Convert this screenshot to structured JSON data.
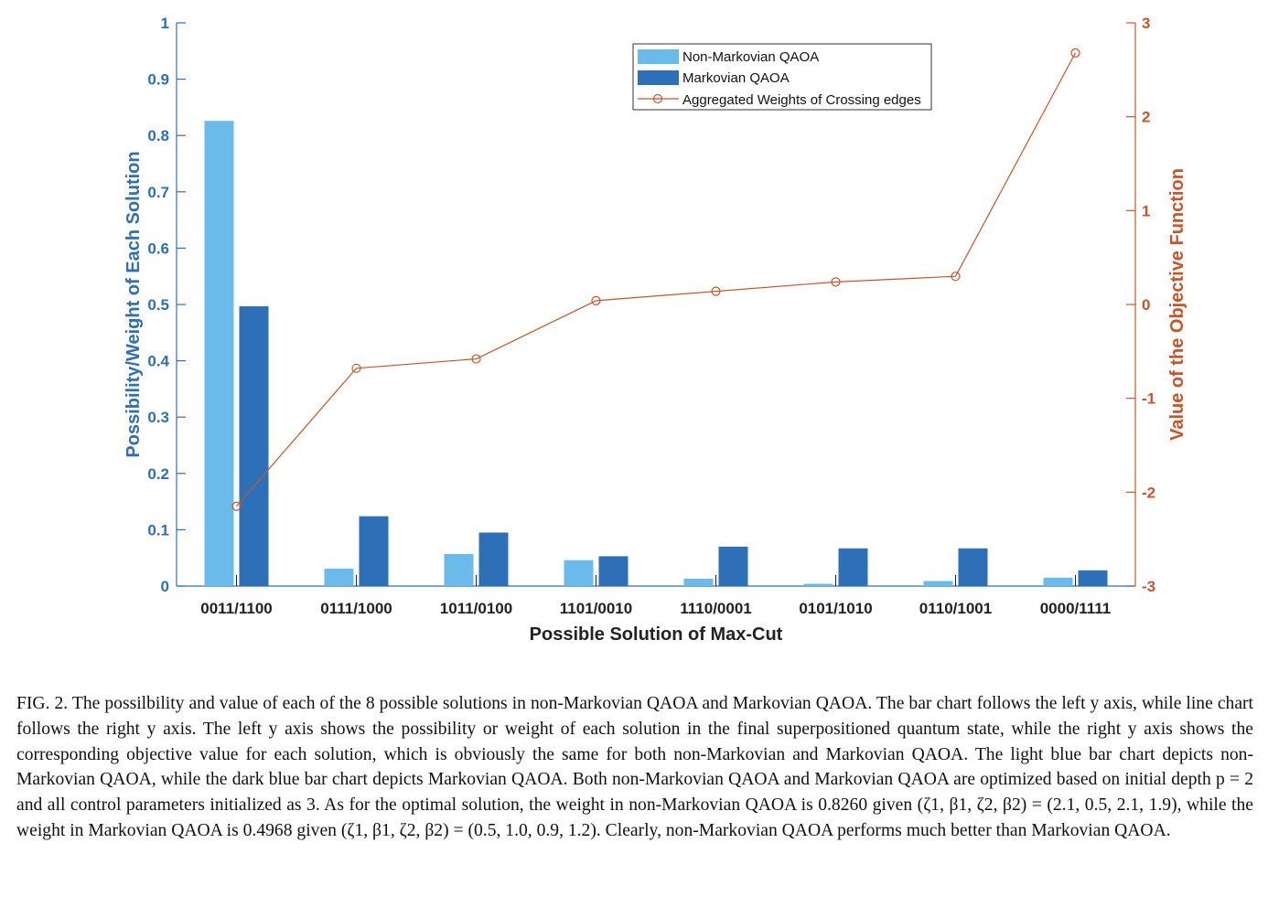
{
  "chart_data": {
    "type": "bar+line",
    "categories": [
      "0011/1100",
      "0111/1000",
      "1011/0100",
      "1101/0010",
      "1110/0001",
      "0101/1010",
      "0110/1001",
      "0000/1111"
    ],
    "series": [
      {
        "name": "Non-Markovian QAOA",
        "type": "bar",
        "axis": "left",
        "color": "#6bbbea",
        "values": [
          0.826,
          0.031,
          0.057,
          0.046,
          0.013,
          0.004,
          0.009,
          0.015
        ]
      },
      {
        "name": "Markovian QAOA",
        "type": "bar",
        "axis": "left",
        "color": "#2e70b8",
        "values": [
          0.4968,
          0.124,
          0.095,
          0.053,
          0.07,
          0.067,
          0.067,
          0.028
        ]
      },
      {
        "name": "Aggregated Weights of Crossing edges",
        "type": "line",
        "axis": "right",
        "color": "#c8552a",
        "values": [
          -2.15,
          -0.68,
          -0.58,
          0.04,
          0.14,
          0.24,
          0.3,
          2.68
        ]
      }
    ],
    "xlabel": "Possible Solution of Max-Cut",
    "ylabel_left": "Possibility/Weight of Each Solution",
    "ylabel_right": "Value of the Objective Function",
    "ylim_left": [
      0,
      1
    ],
    "ylim_right": [
      -3,
      3
    ],
    "yticks_left": [
      "0",
      "0.1",
      "0.2",
      "0.3",
      "0.4",
      "0.5",
      "0.6",
      "0.7",
      "0.8",
      "0.9",
      "1"
    ],
    "yticks_right": [
      "-3",
      "-2",
      "-1",
      "0",
      "1",
      "2",
      "3"
    ],
    "grid": false,
    "legend_position": "top-right",
    "colors": {
      "left_axis": "#2f6fb6",
      "right_axis": "#c8552a"
    }
  },
  "caption": "FIG. 2. The possilbility and value of each of the 8 possible solutions in non-Markovian QAOA and Markovian QAOA. The bar chart follows the left y axis, while line chart follows the right y axis. The left y axis shows the possibility or weight of each solution in the final superpositioned quantum state, while the right y axis shows the corresponding objective value for each solution, which is obviously the same for both non-Markovian and Markovian QAOA. The light blue bar chart depicts non-Markovian QAOA, while the dark blue bar chart depicts Markovian QAOA. Both non-Markovian QAOA and Markovian QAOA are optimized based on initial depth p = 2 and all control parameters initialized as 3. As for the optimal solution, the weight in non-Markovian QAOA is 0.8260 given (ζ1, β1, ζ2, β2) = (2.1, 0.5, 2.1, 1.9), while the weight in Markovian QAOA is 0.4968 given (ζ1, β1, ζ2, β2) = (0.5, 1.0, 0.9, 1.2). Clearly, non-Markovian QAOA performs much better than Markovian QAOA."
}
